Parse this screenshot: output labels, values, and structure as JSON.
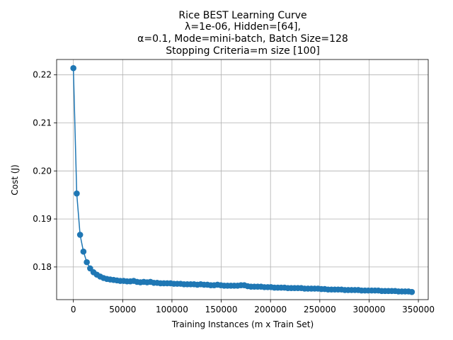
{
  "chart_data": {
    "type": "line",
    "title_lines": [
      "Rice BEST Learning Curve",
      "λ=1e-06,  Hidden=[64],",
      "α=0.1, Mode=mini-batch, Batch Size=128",
      "Stopping Criteria=m size [100]"
    ],
    "xlabel": "Training Instances (m x Train Set)",
    "ylabel": "Cost (J)",
    "xlim": [
      -17000,
      360000
    ],
    "ylim": [
      0.1732,
      0.2232
    ],
    "xticks": [
      0,
      50000,
      100000,
      150000,
      200000,
      250000,
      300000,
      350000
    ],
    "xtick_labels": [
      "0",
      "50000",
      "100000",
      "150000",
      "200000",
      "250000",
      "300000",
      "350000"
    ],
    "yticks": [
      0.18,
      0.19,
      0.2,
      0.21,
      0.22
    ],
    "ytick_labels": [
      "0.18",
      "0.19",
      "0.20",
      "0.21",
      "0.22"
    ],
    "grid": true,
    "line_color": "#1f77b4",
    "marker": "circle",
    "series": [
      {
        "x": [
          0,
          3400,
          6800,
          10200,
          13600,
          17000,
          20400,
          23800,
          27200,
          30600,
          34000,
          37400,
          40800,
          44200,
          47600,
          51000,
          54400,
          57800,
          61200,
          64600,
          68000,
          71400,
          74800,
          78200,
          81600,
          85000,
          88400,
          91800,
          95200,
          98600,
          102000,
          105400,
          108800,
          112200,
          115600,
          119000,
          122400,
          125800,
          129200,
          132600,
          136000,
          139400,
          142800,
          146200,
          149600,
          153000,
          156400,
          159800,
          163200,
          166600,
          170000,
          173400,
          176800,
          180200,
          183600,
          187000,
          190400,
          193800,
          197200,
          200600,
          204000,
          207400,
          210800,
          214200,
          217600,
          221000,
          224400,
          227800,
          231200,
          234600,
          238000,
          241400,
          244800,
          248200,
          251600,
          255000,
          258400,
          261800,
          265200,
          268600,
          272000,
          275400,
          278800,
          282200,
          285600,
          289000,
          292400,
          295800,
          299200,
          302600,
          306000,
          309400,
          312800,
          316200,
          319600,
          323000,
          326400,
          329800,
          333200,
          336600,
          340000,
          343400
        ],
        "y": [
          0.2214,
          0.1953,
          0.1867,
          0.1832,
          0.181,
          0.1797,
          0.1789,
          0.1784,
          0.178,
          0.1777,
          0.1775,
          0.1774,
          0.1773,
          0.1772,
          0.1771,
          0.1771,
          0.177,
          0.177,
          0.1771,
          0.1769,
          0.1768,
          0.1769,
          0.1768,
          0.1769,
          0.1767,
          0.1767,
          0.1766,
          0.1766,
          0.1766,
          0.1766,
          0.1765,
          0.1765,
          0.1765,
          0.1764,
          0.1764,
          0.1764,
          0.1764,
          0.1763,
          0.1764,
          0.1763,
          0.1763,
          0.1762,
          0.1762,
          0.1763,
          0.1762,
          0.1761,
          0.1761,
          0.1761,
          0.1761,
          0.1761,
          0.1762,
          0.1762,
          0.176,
          0.1759,
          0.1759,
          0.1759,
          0.1759,
          0.1758,
          0.1758,
          0.1758,
          0.1757,
          0.1757,
          0.1757,
          0.1757,
          0.1756,
          0.1756,
          0.1756,
          0.1756,
          0.1756,
          0.1755,
          0.1755,
          0.1755,
          0.1755,
          0.1755,
          0.1754,
          0.1754,
          0.1753,
          0.1753,
          0.1753,
          0.1753,
          0.1753,
          0.1752,
          0.1752,
          0.1752,
          0.1752,
          0.1752,
          0.1751,
          0.1751,
          0.1751,
          0.1751,
          0.1751,
          0.1751,
          0.175,
          0.175,
          0.175,
          0.175,
          0.175,
          0.1749,
          0.1749,
          0.1749,
          0.1749,
          0.1748
        ]
      }
    ]
  }
}
